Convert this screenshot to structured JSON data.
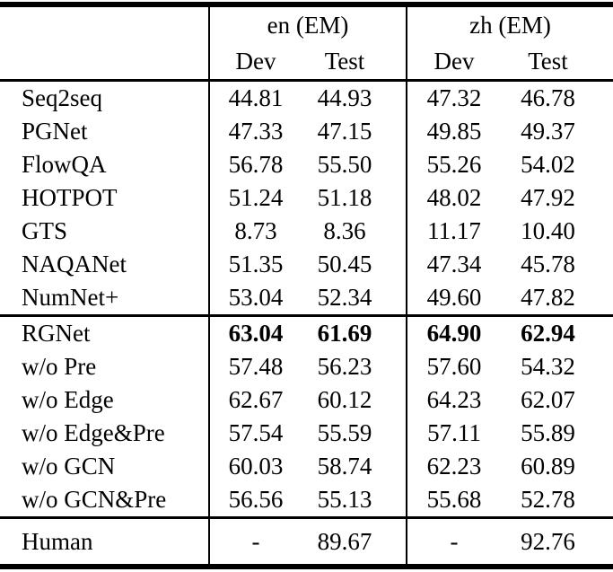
{
  "colors": {
    "text": "#000000",
    "background": "#ffffff",
    "rule": "#000000"
  },
  "table": {
    "header": {
      "groups": [
        {
          "label": "en (EM)"
        },
        {
          "label": "zh (EM)"
        }
      ],
      "subheaders": [
        "Dev",
        "Test",
        "Dev",
        "Test"
      ]
    },
    "sections": [
      {
        "name": "baselines",
        "rows": [
          {
            "label": "Seq2seq",
            "values": [
              "44.81",
              "44.93",
              "47.32",
              "46.78"
            ],
            "bold": false
          },
          {
            "label": "PGNet",
            "values": [
              "47.33",
              "47.15",
              "49.85",
              "49.37"
            ],
            "bold": false
          },
          {
            "label": "FlowQA",
            "values": [
              "56.78",
              "55.50",
              "55.26",
              "54.02"
            ],
            "bold": false
          },
          {
            "label": "HOTPOT",
            "values": [
              "51.24",
              "51.18",
              "48.02",
              "47.92"
            ],
            "bold": false
          },
          {
            "label": "GTS",
            "values": [
              "8.73",
              "8.36",
              "11.17",
              "10.40"
            ],
            "bold": false
          },
          {
            "label": "NAQANet",
            "values": [
              "51.35",
              "50.45",
              "47.34",
              "45.78"
            ],
            "bold": false
          },
          {
            "label": "NumNet+",
            "values": [
              "53.04",
              "52.34",
              "49.60",
              "47.82"
            ],
            "bold": false
          }
        ]
      },
      {
        "name": "rgnet-ablations",
        "rows": [
          {
            "label": "RGNet",
            "values": [
              "63.04",
              "61.69",
              "64.90",
              "62.94"
            ],
            "bold": true
          },
          {
            "label": "w/o Pre",
            "values": [
              "57.48",
              "56.23",
              "57.60",
              "54.32"
            ],
            "bold": false
          },
          {
            "label": "w/o Edge",
            "values": [
              "62.67",
              "60.12",
              "64.23",
              "62.07"
            ],
            "bold": false
          },
          {
            "label": "w/o Edge&Pre",
            "values": [
              "57.54",
              "55.59",
              "57.11",
              "55.89"
            ],
            "bold": false
          },
          {
            "label": "w/o GCN",
            "values": [
              "60.03",
              "58.74",
              "62.23",
              "60.89"
            ],
            "bold": false
          },
          {
            "label": "w/o GCN&Pre",
            "values": [
              "56.56",
              "55.13",
              "55.68",
              "52.78"
            ],
            "bold": false
          }
        ]
      },
      {
        "name": "human",
        "rows": [
          {
            "label": "Human",
            "values": [
              "-",
              "89.67",
              "-",
              "92.76"
            ],
            "bold": false
          }
        ]
      }
    ]
  }
}
